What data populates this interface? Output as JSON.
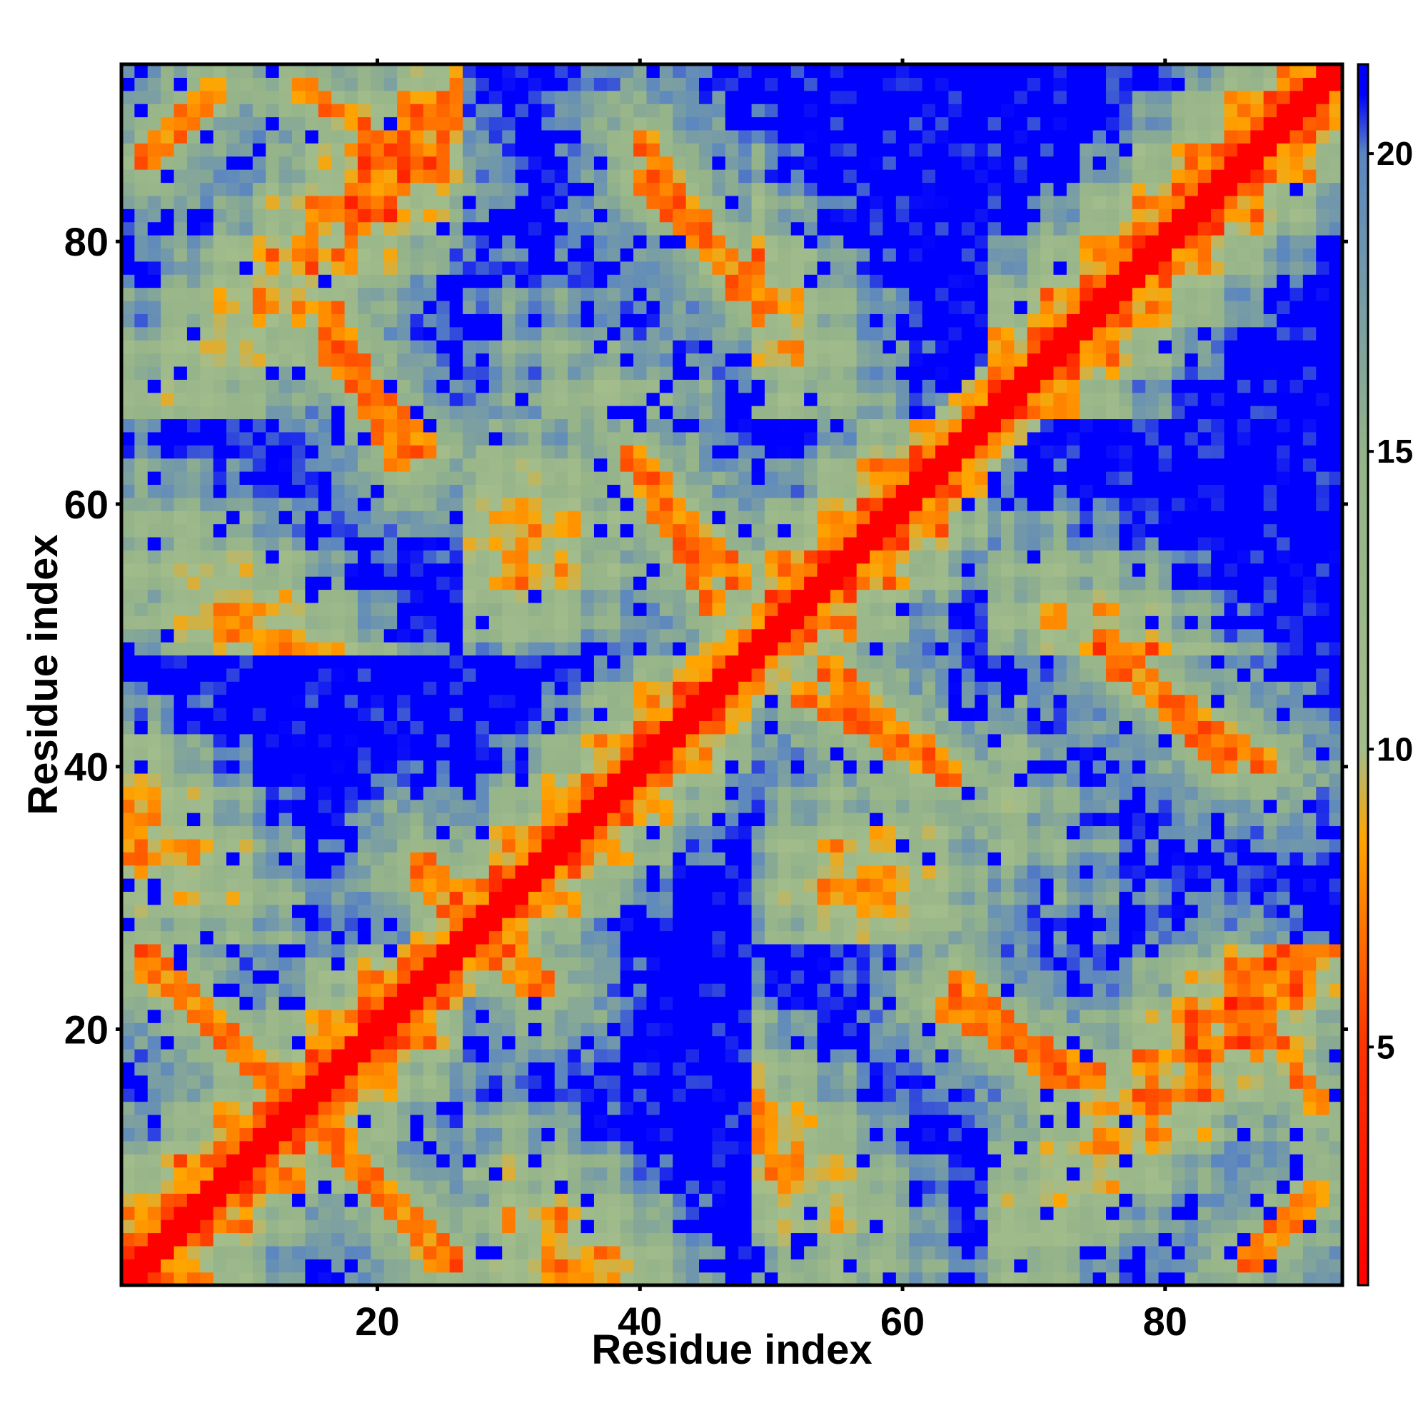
{
  "chart_data": {
    "type": "heatmap",
    "title": "",
    "xlabel": "Residue index",
    "ylabel": "Residue index",
    "n_residues": 93,
    "x_range": [
      1,
      93
    ],
    "y_range": [
      1,
      93
    ],
    "x_ticks": [
      20,
      40,
      60,
      80
    ],
    "y_ticks": [
      20,
      40,
      60,
      80
    ],
    "colorbar": {
      "range": [
        1,
        21.5
      ],
      "ticks": [
        5,
        10,
        15,
        20
      ],
      "stops": [
        {
          "value": 1,
          "color": "#ff0000"
        },
        {
          "value": 5,
          "color": "#ff3300"
        },
        {
          "value": 8.5,
          "color": "#ffa500"
        },
        {
          "value": 10,
          "color": "#a3bd8b"
        },
        {
          "value": 15,
          "color": "#94b38a"
        },
        {
          "value": 20,
          "color": "#5b86c0"
        },
        {
          "value": 21,
          "color": "#0000ff"
        }
      ]
    },
    "secondary_structure": {
      "diagonal_band_width": 1.5,
      "antiparallel_contacts": [
        {
          "x": [
            2,
            26
          ],
          "y": [
            26,
            2
          ]
        },
        {
          "x": [
            15,
            25
          ],
          "y": [
            14,
            2
          ]
        },
        {
          "x": [
            14,
            24
          ],
          "y": [
            92,
            85
          ]
        },
        {
          "x": [
            16,
            24
          ],
          "y": [
            72,
            64
          ]
        },
        {
          "x": [
            40,
            50
          ],
          "y": [
            85,
            75
          ]
        },
        {
          "x": [
            39,
            48
          ],
          "y": [
            64,
            54
          ]
        },
        {
          "x": [
            52,
            64
          ],
          "y": [
            46,
            39
          ]
        },
        {
          "x": [
            63,
            75
          ],
          "y": [
            22,
            16
          ]
        },
        {
          "x": [
            76,
            88
          ],
          "y": [
            48,
            40
          ]
        },
        {
          "x": [
            86,
            92
          ],
          "y": [
            2,
            8
          ]
        },
        {
          "x": [
            23,
            32
          ],
          "y": [
            33,
            23
          ]
        }
      ]
    },
    "grid": false,
    "legend": "colorbar-right"
  }
}
